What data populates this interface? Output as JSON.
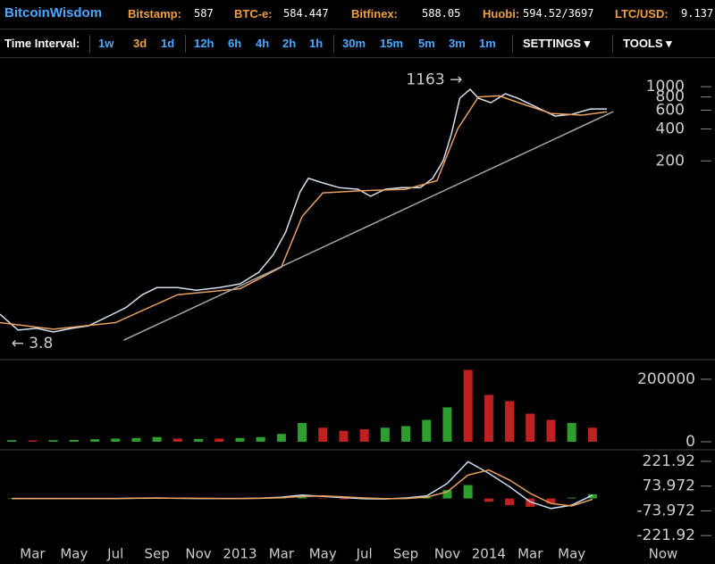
{
  "header": {
    "brand": "BitcoinWisdom",
    "tickers": [
      {
        "label": "Bitstamp:",
        "value": "587"
      },
      {
        "label": "BTC-e:",
        "value": "584.447"
      },
      {
        "label": "Bitfinex:",
        "value": "588.05"
      },
      {
        "label": "Huobi:",
        "value": "594.52/3697"
      },
      {
        "label": "LTC/USD:",
        "value": "9.137"
      }
    ]
  },
  "toolbar": {
    "label": "Time Interval:",
    "intervals": [
      [
        "1w",
        "3d",
        "1d"
      ],
      [
        "12h",
        "6h",
        "4h",
        "2h",
        "1h"
      ],
      [
        "30m",
        "15m",
        "5m",
        "3m",
        "1m"
      ]
    ],
    "active": "3d",
    "menus": [
      "SETTINGS ▾",
      "TOOLS ▾"
    ]
  },
  "chart_data": [
    {
      "type": "line",
      "log_scale": true,
      "xlim": [
        0.43,
        34.91
      ],
      "ylim": [
        2.74,
        1690
      ],
      "yticks": [
        200,
        400,
        600,
        800,
        1000
      ],
      "series": [
        {
          "color": "#d4e0ee",
          "x": [
            0.43,
            1.3,
            2.2,
            3.0,
            3.9,
            4.7,
            5.6,
            6.5,
            7.3,
            8.0,
            9.0,
            9.9,
            11.0,
            12.0,
            12.9,
            13.6,
            14.2,
            14.9,
            15.3,
            16.0,
            16.8,
            17.7,
            18.3,
            19.0,
            19.8,
            20.7,
            21.3,
            21.8,
            22.2,
            22.6,
            23.1,
            23.5,
            24.1,
            24.8,
            25.4,
            26.3,
            27.2,
            28.0,
            28.9,
            29.7
          ],
          "values": [
            7.2,
            5.1,
            5.3,
            4.9,
            5.3,
            5.6,
            6.8,
            8.3,
            11,
            12.8,
            12.8,
            12.1,
            12.8,
            13.9,
            17.8,
            26,
            42.5,
            102,
            137,
            124,
            112,
            108,
            93,
            108,
            112,
            112,
            137,
            200,
            359,
            778,
            944,
            778,
            706,
            857,
            778,
            641,
            528,
            549,
            617,
            617
          ]
        },
        {
          "color": "#e8a060",
          "x": [
            0.43,
            3,
            6,
            9,
            12,
            14,
            15,
            16,
            18,
            20,
            21.5,
            22.5,
            23.5,
            24.5,
            25.5,
            27,
            28.5,
            29.7
          ],
          "values": [
            6,
            5.2,
            6,
            11,
            12.5,
            20,
            60,
            100,
            105,
            108,
            130,
            400,
            800,
            820,
            700,
            560,
            540,
            580
          ]
        },
        {
          "color": "#a8a8a8",
          "x": [
            6.4,
            30
          ],
          "values": [
            4.1,
            582
          ]
        }
      ],
      "annotations": [
        {
          "label": "1163 →",
          "value": 1163,
          "x": 22.9
        },
        {
          "label": "← 3.8",
          "value": 3.8,
          "x": 0.8
        }
      ]
    },
    {
      "type": "bar",
      "xlim": [
        0.43,
        34.91
      ],
      "ylim": [
        -20000,
        257000
      ],
      "yticks": [
        0,
        200000
      ],
      "x": [
        1,
        2,
        3,
        4,
        5,
        6,
        7,
        8,
        9,
        10,
        11,
        12,
        13,
        14,
        15,
        16,
        17,
        18,
        19,
        20,
        21,
        22,
        23,
        24,
        25,
        26,
        27,
        28,
        29
      ],
      "values": [
        5000,
        4000,
        5000,
        6000,
        8000,
        10000,
        12000,
        15000,
        10000,
        9000,
        10000,
        12000,
        15000,
        25000,
        60000,
        45000,
        35000,
        40000,
        45000,
        50000,
        70000,
        110000,
        230000,
        150000,
        130000,
        90000,
        70000,
        60000,
        45000
      ],
      "colors": [
        "#2e9e2e",
        "#c02020",
        "#2e9e2e",
        "#2e9e2e",
        "#2e9e2e",
        "#2e9e2e",
        "#2e9e2e",
        "#2e9e2e",
        "#c02020",
        "#2e9e2e",
        "#c02020",
        "#2e9e2e",
        "#2e9e2e",
        "#2e9e2e",
        "#2e9e2e",
        "#c02020",
        "#c02020",
        "#c02020",
        "#2e9e2e",
        "#2e9e2e",
        "#2e9e2e",
        "#2e9e2e",
        "#c02020",
        "#c02020",
        "#c02020",
        "#c02020",
        "#c02020",
        "#2e9e2e",
        "#c02020"
      ]
    },
    {
      "type": "combo",
      "xlim": [
        0.43,
        34.91
      ],
      "ylim": [
        -285,
        275
      ],
      "yticks": [
        -221.92,
        -73.972,
        73.972,
        221.92
      ],
      "x": [
        1,
        2,
        3,
        4,
        5,
        6,
        7,
        8,
        9,
        10,
        11,
        12,
        13,
        14,
        15,
        16,
        17,
        18,
        19,
        20,
        21,
        22,
        23,
        24,
        25,
        26,
        27,
        28,
        29
      ],
      "series": [
        {
          "type": "bar",
          "color": "#2e9e2e",
          "negative_color": "#c02020",
          "values": [
            0,
            0,
            0,
            0,
            0,
            0,
            1,
            1,
            -1,
            -1,
            0,
            0,
            1,
            4,
            8,
            -3,
            -5,
            -5,
            -2,
            3,
            7,
            50,
            80,
            -20,
            -40,
            -50,
            -30,
            5,
            25
          ]
        },
        {
          "type": "line",
          "color": "#c8dcf0",
          "values": [
            0,
            0,
            0,
            0,
            0,
            0,
            2,
            3,
            1,
            0,
            0,
            0,
            2,
            8,
            20,
            12,
            5,
            -2,
            -3,
            3,
            15,
            90,
            220,
            150,
            70,
            -20,
            -60,
            -40,
            20
          ]
        },
        {
          "type": "line",
          "color": "#e8a060",
          "values": [
            0,
            0,
            0,
            0,
            0,
            0,
            1,
            2,
            2,
            1,
            0,
            0,
            1,
            4,
            12,
            15,
            10,
            3,
            -1,
            0,
            8,
            40,
            140,
            170,
            110,
            30,
            -30,
            -45,
            -5
          ]
        }
      ],
      "xticks": [
        {
          "value": 2,
          "label": "Mar"
        },
        {
          "value": 4,
          "label": "May"
        },
        {
          "value": 6,
          "label": "Jul"
        },
        {
          "value": 8,
          "label": "Sep"
        },
        {
          "value": 10,
          "label": "Nov"
        },
        {
          "value": 12,
          "label": "2013"
        },
        {
          "value": 14,
          "label": "Mar"
        },
        {
          "value": 16,
          "label": "May"
        },
        {
          "value": 18,
          "label": "Jul"
        },
        {
          "value": 20,
          "label": "Sep"
        },
        {
          "value": 22,
          "label": "Nov"
        },
        {
          "value": 24,
          "label": "2014"
        },
        {
          "value": 26,
          "label": "Mar"
        },
        {
          "value": 28,
          "label": "May"
        },
        {
          "value": 32.41,
          "label": "Now"
        }
      ]
    }
  ]
}
